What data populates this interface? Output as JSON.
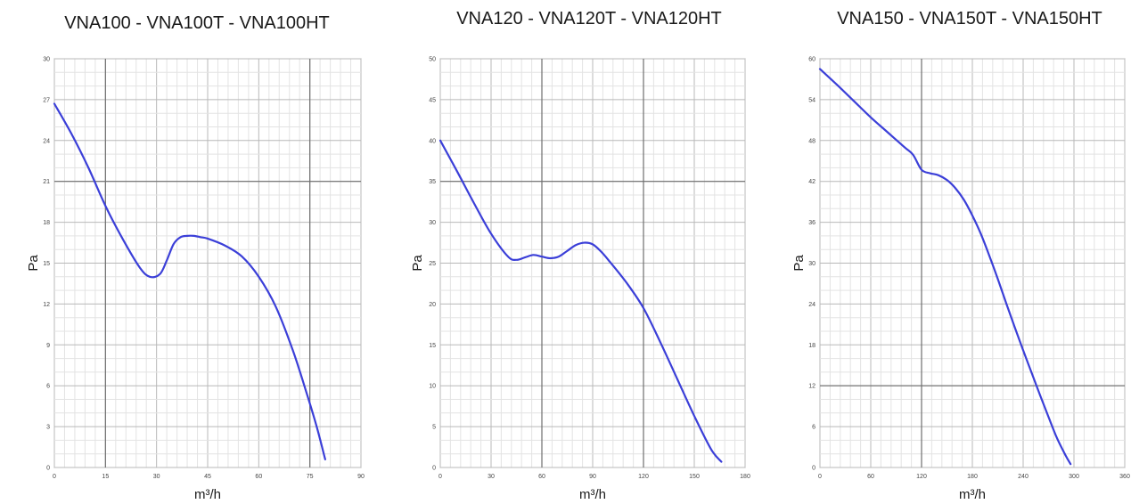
{
  "chart_data": [
    {
      "type": "line",
      "title": "VNA100 - VNA100T - VNA100HT",
      "xlabel": "m³/h",
      "ylabel": "Pa",
      "xlim": [
        0,
        90
      ],
      "ylim": [
        0,
        30
      ],
      "x_ticks": [
        "0",
        "15",
        "30",
        "45",
        "60",
        "75",
        "90"
      ],
      "y_ticks": [
        "0",
        "3",
        "6",
        "9",
        "12",
        "15",
        "18",
        "21",
        "24",
        "27",
        "30"
      ],
      "grid": true,
      "series": [
        {
          "color": "#3b3fd8",
          "x": [
            0,
            5,
            10,
            15,
            20,
            25,
            28,
            31,
            33,
            35,
            37,
            39,
            41,
            43,
            45,
            50,
            55,
            60,
            65,
            70,
            74,
            77,
            79.5
          ],
          "y": [
            26.7,
            24.5,
            22.0,
            19.2,
            16.8,
            14.7,
            14.0,
            14.2,
            15.2,
            16.4,
            16.9,
            17.0,
            17.0,
            16.9,
            16.8,
            16.3,
            15.5,
            14.0,
            11.8,
            8.6,
            5.5,
            3.0,
            0.6
          ]
        }
      ]
    },
    {
      "type": "line",
      "title": "VNA120 - VNA120T - VNA120HT",
      "xlabel": "m³/h",
      "ylabel": "Pa",
      "xlim": [
        0,
        180
      ],
      "ylim": [
        0,
        50
      ],
      "x_ticks": [
        "0",
        "30",
        "60",
        "90",
        "120",
        "150",
        "180"
      ],
      "y_ticks": [
        "0",
        "5",
        "10",
        "15",
        "20",
        "25",
        "30",
        "35",
        "40",
        "45",
        "50"
      ],
      "grid": true,
      "series": [
        {
          "color": "#3b3fd8",
          "x": [
            0,
            10,
            20,
            30,
            40,
            45,
            50,
            55,
            60,
            65,
            70,
            75,
            80,
            85,
            90,
            95,
            100,
            110,
            120,
            130,
            140,
            150,
            160,
            166
          ],
          "y": [
            40,
            36.2,
            32.3,
            28.6,
            25.8,
            25.4,
            25.7,
            26.0,
            25.8,
            25.6,
            25.8,
            26.5,
            27.2,
            27.5,
            27.3,
            26.4,
            25.2,
            22.6,
            19.5,
            15.3,
            10.8,
            6.3,
            2.2,
            0.7
          ]
        }
      ]
    },
    {
      "type": "line",
      "title": "VNA150 - VNA150T - VNA150HT",
      "xlabel": "m³/h",
      "ylabel": "Pa",
      "xlim": [
        0,
        360
      ],
      "ylim": [
        0,
        60
      ],
      "x_ticks": [
        "0",
        "60",
        "120",
        "180",
        "240",
        "300",
        "360"
      ],
      "y_ticks": [
        "0",
        "6",
        "12",
        "18",
        "24",
        "30",
        "36",
        "42",
        "48",
        "54",
        "60"
      ],
      "grid": true,
      "series": [
        {
          "color": "#3b3fd8",
          "x": [
            0,
            20,
            40,
            60,
            80,
            100,
            110,
            120,
            130,
            140,
            150,
            160,
            170,
            180,
            190,
            200,
            210,
            220,
            230,
            240,
            250,
            260,
            270,
            280,
            290,
            296
          ],
          "y": [
            58.5,
            56.2,
            53.8,
            51.4,
            49.2,
            47.0,
            45.9,
            43.7,
            43.2,
            42.9,
            42.2,
            41.0,
            39.3,
            37.0,
            34.3,
            31.1,
            27.7,
            24.1,
            20.6,
            17.2,
            13.9,
            10.6,
            7.4,
            4.3,
            1.8,
            0.5
          ]
        }
      ]
    }
  ]
}
